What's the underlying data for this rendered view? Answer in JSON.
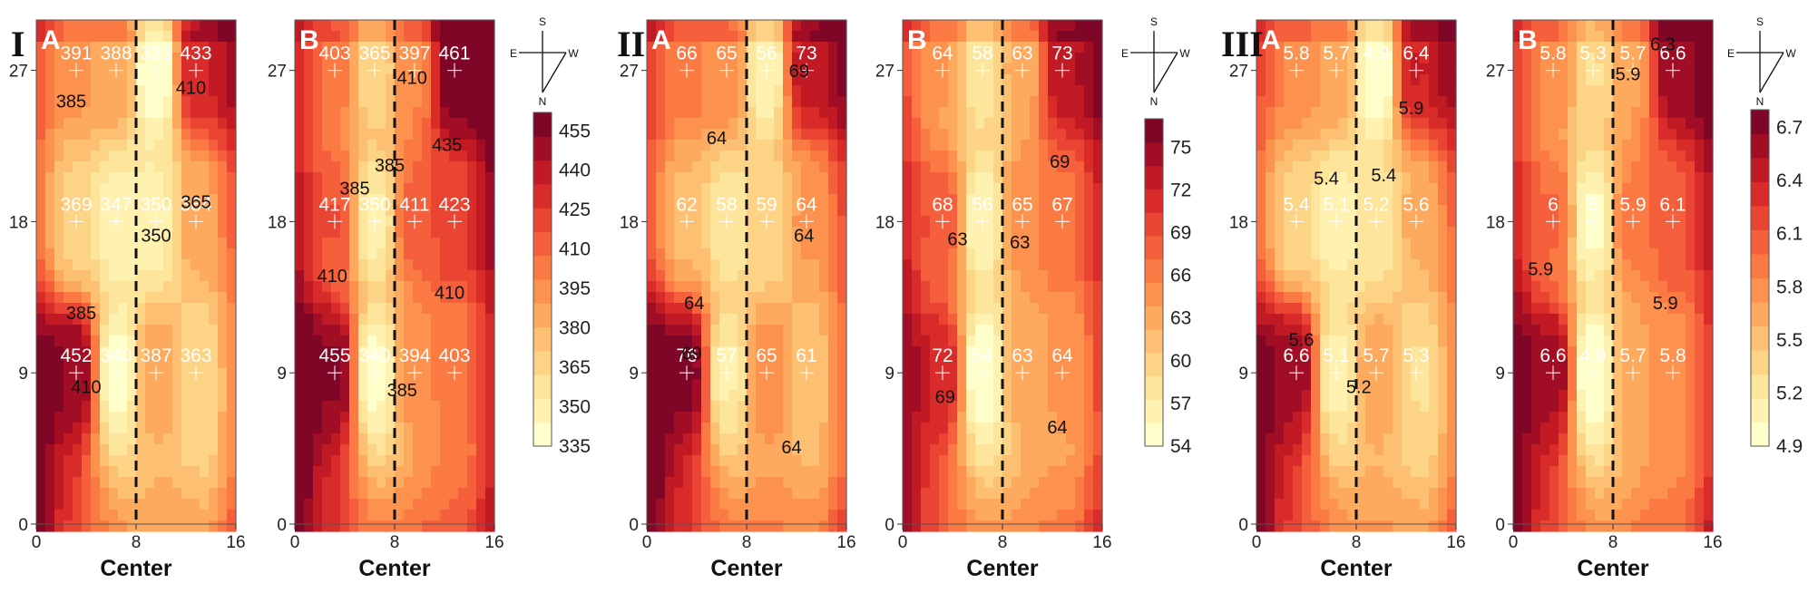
{
  "colorscale": [
    "#ffffcc",
    "#fff2b0",
    "#fde59b",
    "#fdd486",
    "#fdc073",
    "#fdaa5e",
    "#fc924e",
    "#fb7a44",
    "#f65f3b",
    "#ea4433",
    "#d92c2a",
    "#c11a25",
    "#a00d24",
    "#7f0626"
  ],
  "compass": {
    "north": "N",
    "south": "S",
    "east": "E",
    "west": "W"
  },
  "groups": [
    {
      "tag": "I",
      "legend_ticks": [
        "335",
        "350",
        "365",
        "380",
        "395",
        "410",
        "425",
        "440",
        "455"
      ],
      "legend_range": [
        335,
        462
      ]
    },
    {
      "tag": "II",
      "legend_ticks": [
        "54",
        "57",
        "60",
        "63",
        "66",
        "69",
        "72",
        "75"
      ],
      "legend_range": [
        54,
        77
      ]
    },
    {
      "tag": "III",
      "legend_ticks": [
        "4.9",
        "5.2",
        "5.5",
        "5.8",
        "6.1",
        "6.4",
        "6.7"
      ],
      "legend_range": [
        4.9,
        6.8
      ]
    }
  ],
  "chart_data": [
    {
      "type": "heatmap",
      "group": "I",
      "panel": "A",
      "xlabel": "Center",
      "xlim": [
        0,
        16
      ],
      "ylim": [
        0,
        30
      ],
      "xticks": [
        "0",
        "8",
        "16"
      ],
      "yticks": [
        "0",
        "9",
        "18",
        "27"
      ],
      "center_line_x": 8,
      "points": [
        {
          "x": 3.2,
          "y": 27,
          "label": "391"
        },
        {
          "x": 6.4,
          "y": 27,
          "label": "388"
        },
        {
          "x": 9.6,
          "y": 27,
          "label": "333"
        },
        {
          "x": 12.8,
          "y": 27,
          "label": "433"
        },
        {
          "x": 3.2,
          "y": 18,
          "label": "369"
        },
        {
          "x": 6.4,
          "y": 18,
          "label": "347"
        },
        {
          "x": 9.6,
          "y": 18,
          "label": "350"
        },
        {
          "x": 12.8,
          "y": 18,
          "label": "384"
        },
        {
          "x": 3.2,
          "y": 9,
          "label": "452"
        },
        {
          "x": 6.4,
          "y": 9,
          "label": "340"
        },
        {
          "x": 9.6,
          "y": 9,
          "label": "387"
        },
        {
          "x": 12.8,
          "y": 9,
          "label": "363"
        }
      ],
      "contour_labels": [
        {
          "x": 2.8,
          "y": 24.8,
          "label": "385"
        },
        {
          "x": 9.6,
          "y": 16.8,
          "label": "350"
        },
        {
          "x": 12.8,
          "y": 18.8,
          "label": "365"
        },
        {
          "x": 3.6,
          "y": 12.2,
          "label": "385"
        },
        {
          "x": 4.0,
          "y": 7.8,
          "label": "410"
        },
        {
          "x": 12.4,
          "y": 25.6,
          "label": "410"
        }
      ]
    },
    {
      "type": "heatmap",
      "group": "I",
      "panel": "B",
      "xlabel": "Center",
      "xlim": [
        0,
        16
      ],
      "ylim": [
        0,
        30
      ],
      "xticks": [
        "0",
        "8",
        "16"
      ],
      "yticks": [
        "0",
        "9",
        "18",
        "27"
      ],
      "center_line_x": 8,
      "points": [
        {
          "x": 3.2,
          "y": 27,
          "label": "403"
        },
        {
          "x": 6.4,
          "y": 27,
          "label": "365"
        },
        {
          "x": 9.6,
          "y": 27,
          "label": "397"
        },
        {
          "x": 12.8,
          "y": 27,
          "label": "461"
        },
        {
          "x": 3.2,
          "y": 18,
          "label": "417"
        },
        {
          "x": 6.4,
          "y": 18,
          "label": "350"
        },
        {
          "x": 9.6,
          "y": 18,
          "label": "411"
        },
        {
          "x": 12.8,
          "y": 18,
          "label": "423"
        },
        {
          "x": 3.2,
          "y": 9,
          "label": "455"
        },
        {
          "x": 6.4,
          "y": 9,
          "label": "340"
        },
        {
          "x": 9.6,
          "y": 9,
          "label": "394"
        },
        {
          "x": 12.8,
          "y": 9,
          "label": "403"
        }
      ],
      "contour_labels": [
        {
          "x": 9.4,
          "y": 26.2,
          "label": "410"
        },
        {
          "x": 12.2,
          "y": 22.2,
          "label": "435"
        },
        {
          "x": 7.6,
          "y": 21.0,
          "label": "385"
        },
        {
          "x": 4.8,
          "y": 19.6,
          "label": "385"
        },
        {
          "x": 3.0,
          "y": 14.4,
          "label": "410"
        },
        {
          "x": 12.4,
          "y": 13.4,
          "label": "410"
        },
        {
          "x": 8.6,
          "y": 7.6,
          "label": "385"
        }
      ]
    },
    {
      "type": "heatmap",
      "group": "II",
      "panel": "A",
      "xlabel": "Center",
      "xlim": [
        0,
        16
      ],
      "ylim": [
        0,
        30
      ],
      "xticks": [
        "0",
        "8",
        "16"
      ],
      "yticks": [
        "0",
        "9",
        "18",
        "27"
      ],
      "center_line_x": 8,
      "points": [
        {
          "x": 3.2,
          "y": 27,
          "label": "66"
        },
        {
          "x": 6.4,
          "y": 27,
          "label": "65"
        },
        {
          "x": 9.6,
          "y": 27,
          "label": "56"
        },
        {
          "x": 12.8,
          "y": 27,
          "label": "73"
        },
        {
          "x": 3.2,
          "y": 18,
          "label": "62"
        },
        {
          "x": 6.4,
          "y": 18,
          "label": "58"
        },
        {
          "x": 9.6,
          "y": 18,
          "label": "59"
        },
        {
          "x": 12.8,
          "y": 18,
          "label": "64"
        },
        {
          "x": 3.2,
          "y": 9,
          "label": "76"
        },
        {
          "x": 6.4,
          "y": 9,
          "label": "57"
        },
        {
          "x": 9.6,
          "y": 9,
          "label": "65"
        },
        {
          "x": 12.8,
          "y": 9,
          "label": "61"
        }
      ],
      "contour_labels": [
        {
          "x": 5.6,
          "y": 22.6,
          "label": "64"
        },
        {
          "x": 12.2,
          "y": 26.6,
          "label": "69"
        },
        {
          "x": 12.6,
          "y": 16.8,
          "label": "64"
        },
        {
          "x": 3.8,
          "y": 12.8,
          "label": "64"
        },
        {
          "x": 3.6,
          "y": 9.8,
          "label": "69"
        },
        {
          "x": 11.6,
          "y": 4.2,
          "label": "64"
        }
      ]
    },
    {
      "type": "heatmap",
      "group": "II",
      "panel": "B",
      "xlabel": "Center",
      "xlim": [
        0,
        16
      ],
      "ylim": [
        0,
        30
      ],
      "xticks": [
        "0",
        "8",
        "16"
      ],
      "yticks": [
        "0",
        "9",
        "18",
        "27"
      ],
      "center_line_x": 8,
      "points": [
        {
          "x": 3.2,
          "y": 27,
          "label": "64"
        },
        {
          "x": 6.4,
          "y": 27,
          "label": "58"
        },
        {
          "x": 9.6,
          "y": 27,
          "label": "63"
        },
        {
          "x": 12.8,
          "y": 27,
          "label": "73"
        },
        {
          "x": 3.2,
          "y": 18,
          "label": "68"
        },
        {
          "x": 6.4,
          "y": 18,
          "label": "56"
        },
        {
          "x": 9.6,
          "y": 18,
          "label": "65"
        },
        {
          "x": 12.8,
          "y": 18,
          "label": "67"
        },
        {
          "x": 3.2,
          "y": 9,
          "label": "72"
        },
        {
          "x": 6.4,
          "y": 9,
          "label": "54"
        },
        {
          "x": 9.6,
          "y": 9,
          "label": "63"
        },
        {
          "x": 12.8,
          "y": 9,
          "label": "64"
        }
      ],
      "contour_labels": [
        {
          "x": 12.6,
          "y": 21.2,
          "label": "69"
        },
        {
          "x": 4.4,
          "y": 16.6,
          "label": "63"
        },
        {
          "x": 9.4,
          "y": 16.4,
          "label": "63"
        },
        {
          "x": 3.4,
          "y": 7.2,
          "label": "69"
        },
        {
          "x": 12.4,
          "y": 5.4,
          "label": "64"
        }
      ]
    },
    {
      "type": "heatmap",
      "group": "III",
      "panel": "A",
      "xlabel": "Center",
      "xlim": [
        0,
        16
      ],
      "ylim": [
        0,
        30
      ],
      "xticks": [
        "0",
        "8",
        "16"
      ],
      "yticks": [
        "0",
        "9",
        "18",
        "27"
      ],
      "center_line_x": 8,
      "points": [
        {
          "x": 3.2,
          "y": 27,
          "label": "5.8"
        },
        {
          "x": 6.4,
          "y": 27,
          "label": "5.7"
        },
        {
          "x": 9.6,
          "y": 27,
          "label": "4.9"
        },
        {
          "x": 12.8,
          "y": 27,
          "label": "6.4"
        },
        {
          "x": 3.2,
          "y": 18,
          "label": "5.4"
        },
        {
          "x": 6.4,
          "y": 18,
          "label": "5.1"
        },
        {
          "x": 9.6,
          "y": 18,
          "label": "5.2"
        },
        {
          "x": 12.8,
          "y": 18,
          "label": "5.6"
        },
        {
          "x": 3.2,
          "y": 9,
          "label": "6.6"
        },
        {
          "x": 6.4,
          "y": 9,
          "label": "5.1"
        },
        {
          "x": 9.6,
          "y": 9,
          "label": "5.7"
        },
        {
          "x": 12.8,
          "y": 9,
          "label": "5.3"
        }
      ],
      "contour_labels": [
        {
          "x": 5.6,
          "y": 20.2,
          "label": "5.4"
        },
        {
          "x": 10.2,
          "y": 20.4,
          "label": "5.4"
        },
        {
          "x": 12.4,
          "y": 24.4,
          "label": "5.9"
        },
        {
          "x": 3.6,
          "y": 10.6,
          "label": "5.6"
        },
        {
          "x": 8.2,
          "y": 7.8,
          "label": "5.2"
        }
      ]
    },
    {
      "type": "heatmap",
      "group": "III",
      "panel": "B",
      "xlabel": "Center",
      "xlim": [
        0,
        16
      ],
      "ylim": [
        0,
        30
      ],
      "xticks": [
        "0",
        "8",
        "16"
      ],
      "yticks": [
        "0",
        "9",
        "18",
        "27"
      ],
      "center_line_x": 8,
      "points": [
        {
          "x": 3.2,
          "y": 27,
          "label": "5.8"
        },
        {
          "x": 6.4,
          "y": 27,
          "label": "5.3"
        },
        {
          "x": 9.6,
          "y": 27,
          "label": "5.7"
        },
        {
          "x": 12.8,
          "y": 27,
          "label": "6.6"
        },
        {
          "x": 3.2,
          "y": 18,
          "label": "6"
        },
        {
          "x": 6.4,
          "y": 18,
          "label": "5"
        },
        {
          "x": 9.6,
          "y": 18,
          "label": "5.9"
        },
        {
          "x": 12.8,
          "y": 18,
          "label": "6.1"
        },
        {
          "x": 3.2,
          "y": 9,
          "label": "6.6"
        },
        {
          "x": 6.4,
          "y": 9,
          "label": "4.9"
        },
        {
          "x": 9.6,
          "y": 9,
          "label": "5.7"
        },
        {
          "x": 12.8,
          "y": 9,
          "label": "5.8"
        }
      ],
      "contour_labels": [
        {
          "x": 9.2,
          "y": 26.4,
          "label": "5.9"
        },
        {
          "x": 12.0,
          "y": 28.2,
          "label": "6.3"
        },
        {
          "x": 2.2,
          "y": 14.8,
          "label": "5.9"
        },
        {
          "x": 12.2,
          "y": 12.8,
          "label": "5.9"
        }
      ]
    }
  ]
}
